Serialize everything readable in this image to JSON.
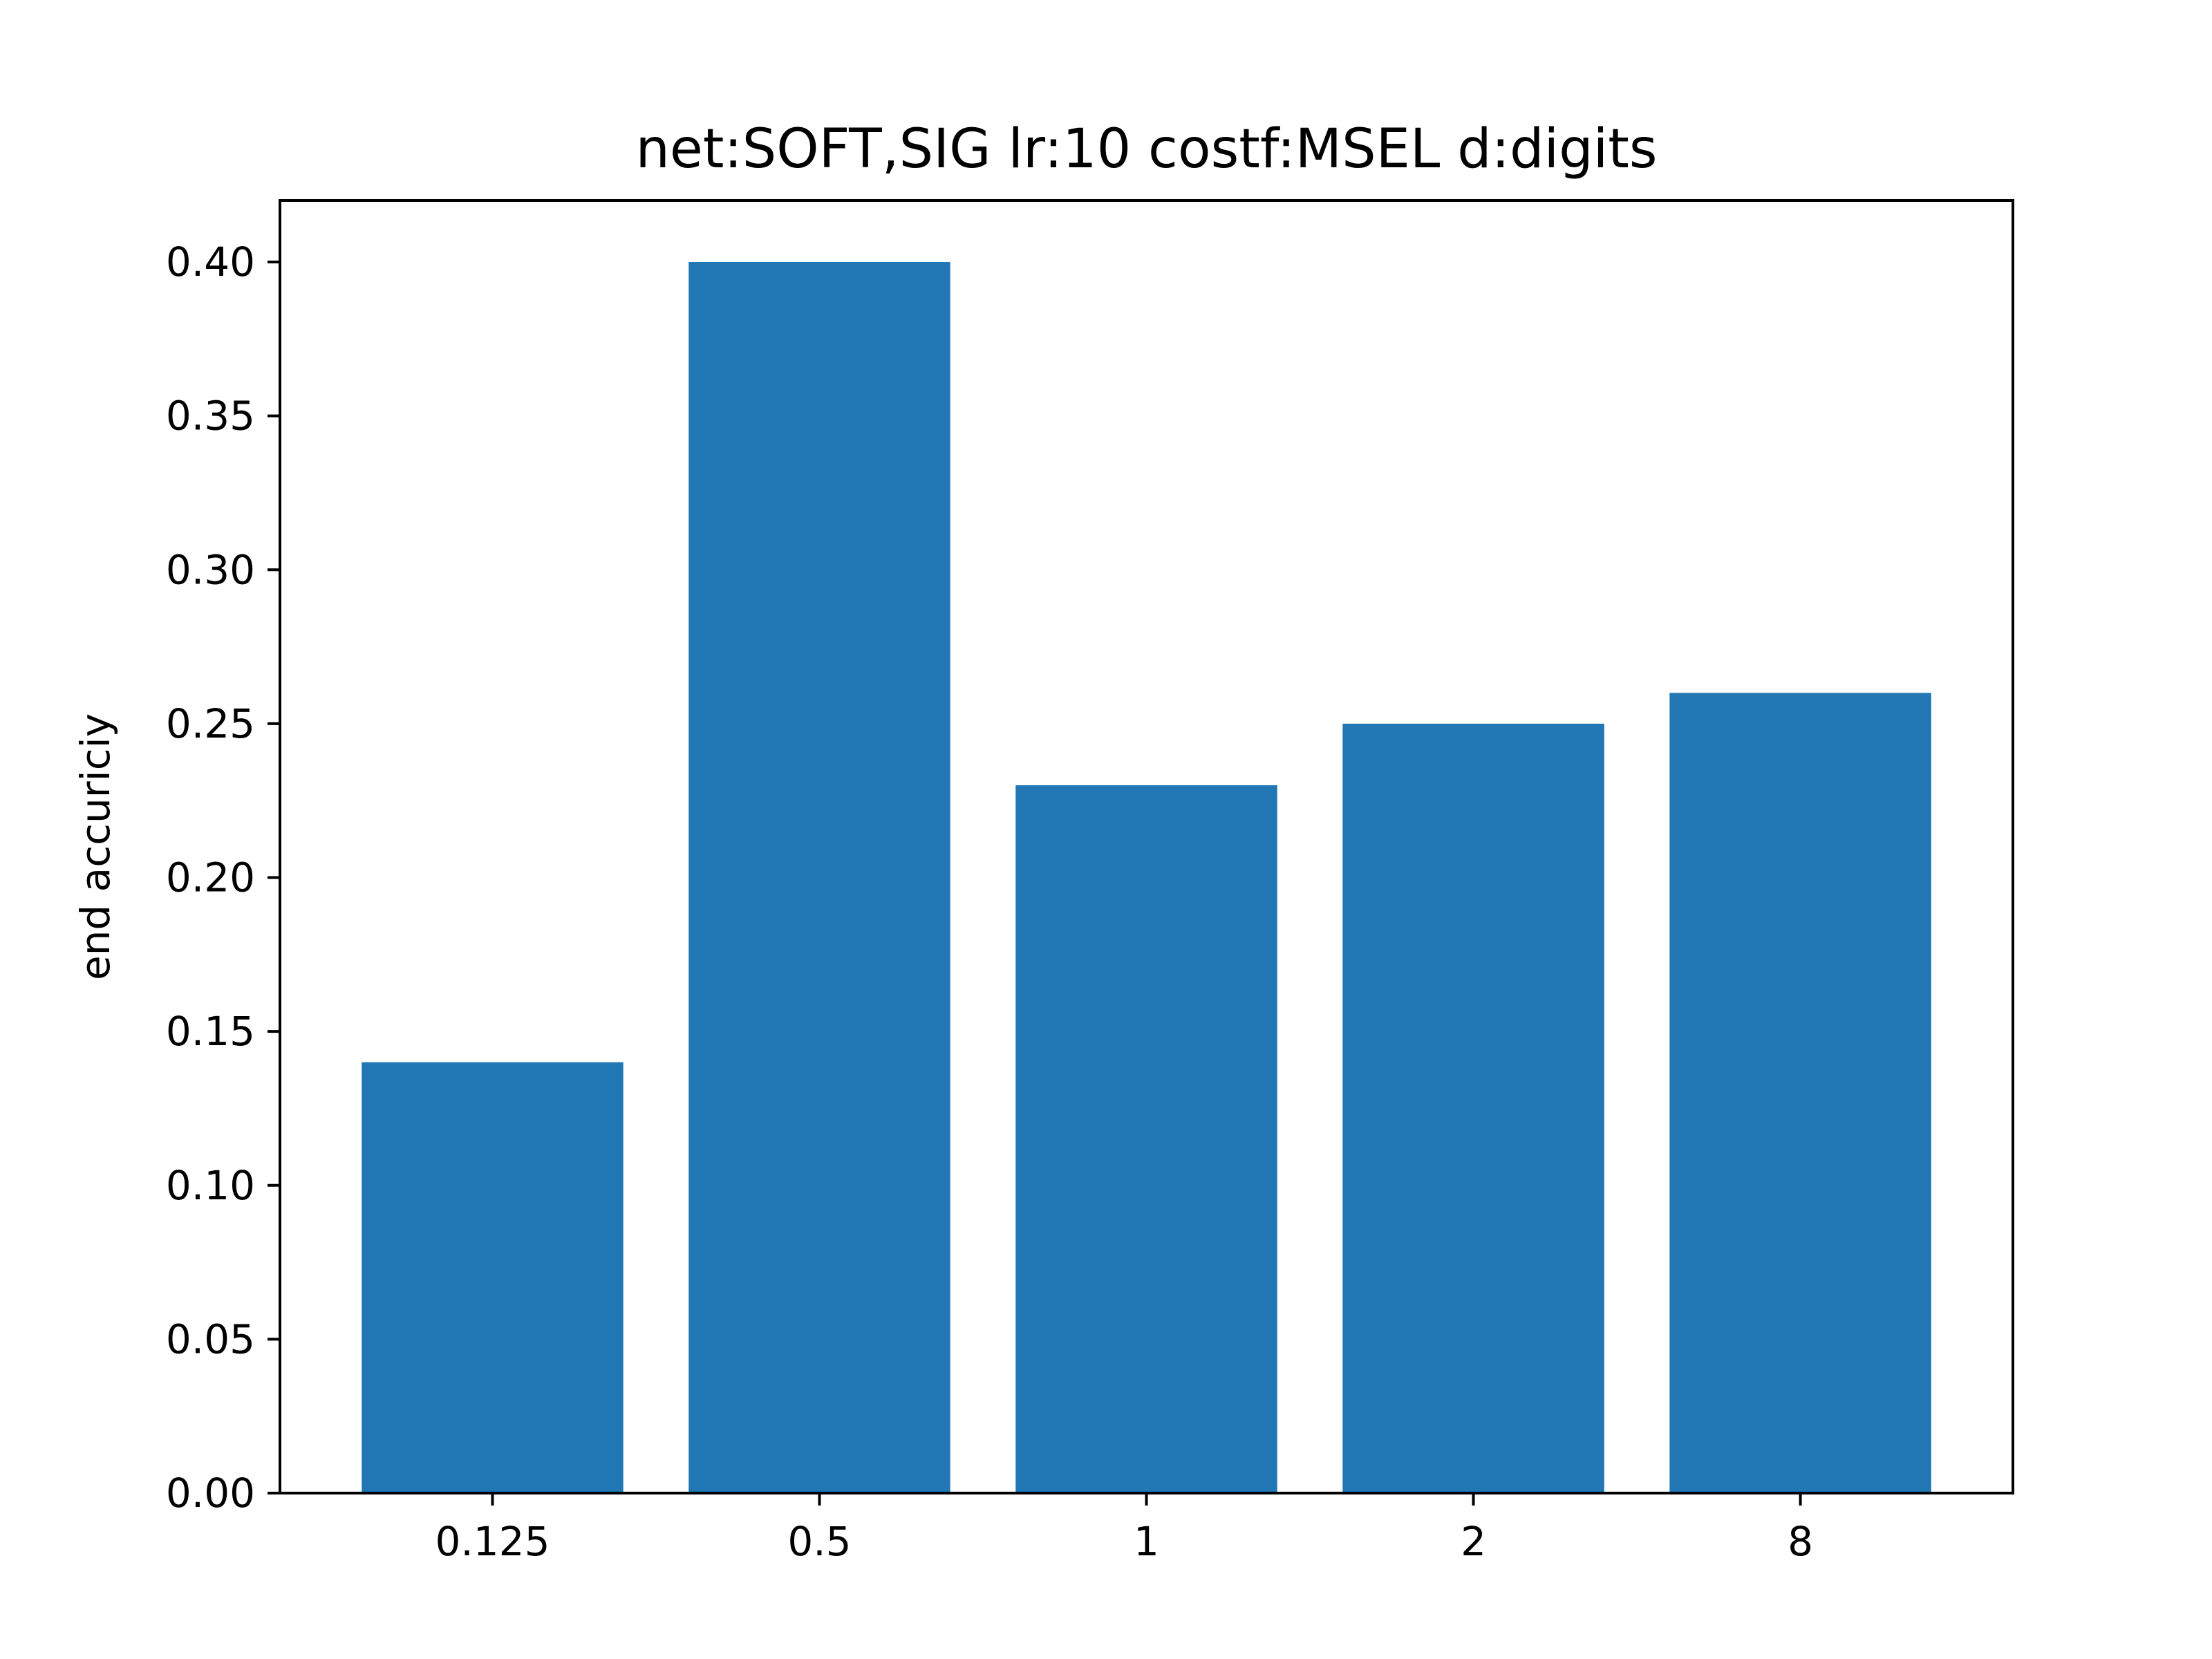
{
  "chart_data": {
    "type": "bar",
    "title": "net:SOFT,SIG lr:10 costf:MSEL d:digits",
    "xlabel": "",
    "ylabel": "end accuriciy",
    "categories": [
      "0.125",
      "0.5",
      "1",
      "2",
      "8"
    ],
    "values": [
      0.14,
      0.4,
      0.23,
      0.25,
      0.26
    ],
    "ylim": [
      0,
      0.42
    ],
    "yticks": [
      0.0,
      0.05,
      0.1,
      0.15,
      0.2,
      0.25,
      0.3,
      0.35,
      0.4
    ],
    "ytick_labels": [
      "0.00",
      "0.05",
      "0.10",
      "0.15",
      "0.20",
      "0.25",
      "0.30",
      "0.35",
      "0.40"
    ],
    "bar_color": "#2077b4",
    "grid": false,
    "legend": "none"
  }
}
